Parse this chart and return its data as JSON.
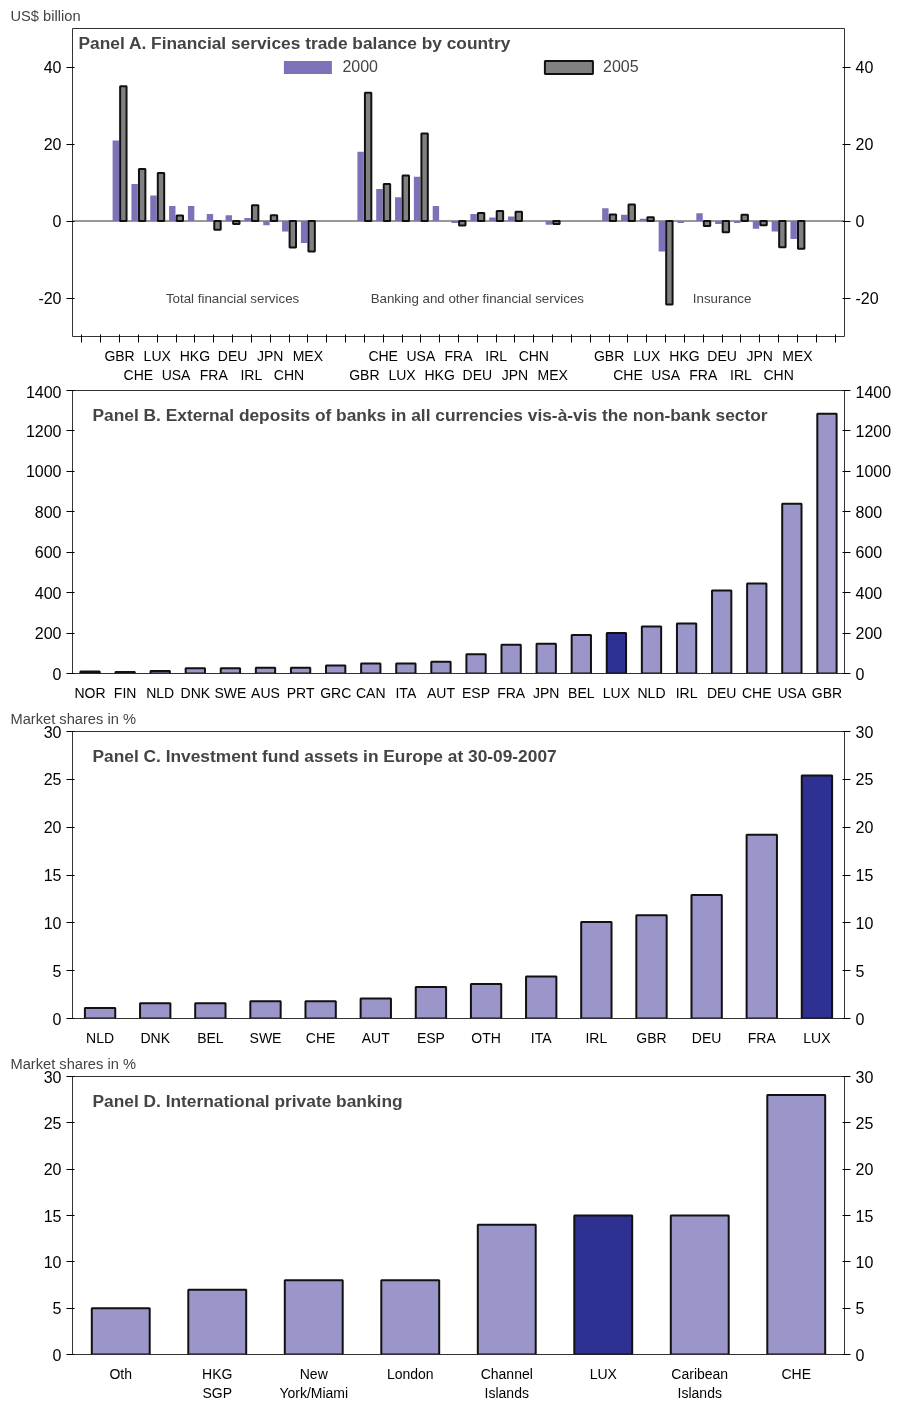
{
  "chart_data": [
    {
      "type": "bar",
      "title": "Panel A. Financial services trade balance by country",
      "ylabel": "US$ billion",
      "categories": [
        null,
        null,
        "GBR",
        "CHE",
        "LUX",
        "USA",
        "HKG",
        "FRA",
        "DEU",
        "IRL",
        "JPN",
        "CHN",
        "MEX",
        null,
        null,
        "GBR",
        "CHE",
        "LUX",
        "USA",
        "HKG",
        "FRA",
        "DEU",
        "IRL",
        "JPN",
        "CHN",
        "MEX",
        null,
        null,
        "GBR",
        "CHE",
        "LUX",
        "USA",
        "HKG",
        "FRA",
        "DEU",
        "IRL",
        "JPN",
        "CHN",
        "MEX",
        null,
        null
      ],
      "series": [
        {
          "name": "2000",
          "color": "#7b72b8",
          "values": [
            null,
            null,
            20.9,
            9.6,
            6.6,
            3.9,
            3.9,
            1.8,
            1.5,
            0.8,
            -1.1,
            -2.7,
            -5.7,
            null,
            null,
            18.0,
            8.3,
            6.2,
            11.5,
            3.9,
            -0.5,
            1.8,
            0.9,
            1.2,
            null,
            -1.0,
            null,
            null,
            3.3,
            1.6,
            0.6,
            -7.9,
            -0.5,
            2.0,
            -0.8,
            -0.5,
            -2.0,
            -2.7,
            -4.7,
            null,
            null
          ]
        },
        {
          "name": "2005",
          "color": "#808080",
          "values": [
            null,
            null,
            35.0,
            13.5,
            12.5,
            1.4,
            null,
            -2.3,
            -0.8,
            4.1,
            1.5,
            -6.9,
            -7.9,
            null,
            null,
            33.3,
            9.6,
            11.8,
            22.7,
            null,
            -1.2,
            2.1,
            2.6,
            2.4,
            null,
            -0.8,
            null,
            null,
            1.7,
            4.3,
            1.0,
            -21.7,
            null,
            -1.3,
            -2.9,
            1.6,
            -1.1,
            -6.8,
            -7.2,
            null,
            null
          ]
        }
      ],
      "annotations": [
        "Total financial services",
        "Banking and other financial services",
        "Insurance"
      ],
      "ylim": [
        -30,
        50
      ],
      "yticks": [
        -20,
        0,
        20,
        40
      ],
      "y2lim": [
        -30,
        50
      ],
      "y2ticks": [
        -20,
        0,
        20,
        40
      ],
      "legend": "top",
      "grid": false,
      "ref_lines": [
        {
          "axis": "y",
          "value": 0,
          "color": "#333333"
        }
      ]
    },
    {
      "type": "bar",
      "title": "Panel B. External deposits of banks in all currencies vis-à-vis the non-bank sector",
      "categories": [
        "NOR",
        "FIN",
        "NLD",
        "DNK",
        "SWE",
        "AUS",
        "PRT",
        "GRC",
        "CAN",
        "ITA",
        "AUT",
        "ESP",
        "FRA",
        "JPN",
        "BEL",
        "LUX",
        "NLD",
        "IRL",
        "DEU",
        "CHE",
        "USA",
        "GBR"
      ],
      "values": [
        10,
        8,
        12,
        26,
        26,
        28,
        28,
        40,
        50,
        50,
        58,
        95,
        142,
        147,
        190,
        200,
        232,
        247,
        410,
        445,
        840,
        1285
      ],
      "colors": [
        "#9b96c9",
        "#9b96c9",
        "#9b96c9",
        "#9b96c9",
        "#9b96c9",
        "#9b96c9",
        "#9b96c9",
        "#9b96c9",
        "#9b96c9",
        "#9b96c9",
        "#9b96c9",
        "#9b96c9",
        "#9b96c9",
        "#9b96c9",
        "#9b96c9",
        "#2e3192",
        "#9b96c9",
        "#9b96c9",
        "#9b96c9",
        "#9b96c9",
        "#9b96c9",
        "#9b96c9"
      ],
      "ylim": [
        0,
        1400
      ],
      "yticks": [
        0,
        200,
        400,
        600,
        800,
        1000,
        1200,
        1400
      ],
      "y2lim": [
        0,
        1400
      ],
      "y2ticks": [
        0,
        200,
        400,
        600,
        800,
        1000,
        1200,
        1400
      ],
      "grid": false
    },
    {
      "type": "bar",
      "title": "Panel C. Investment fund assets in Europe at 30-09-2007",
      "ylabel": "Market shares in %",
      "categories": [
        "NLD",
        "DNK",
        "BEL",
        "SWE",
        "CHE",
        "AUT",
        "ESP",
        "OTH",
        "ITA",
        "IRL",
        "GBR",
        "DEU",
        "FRA",
        "LUX"
      ],
      "values": [
        1.1,
        1.6,
        1.6,
        1.8,
        1.8,
        2.1,
        3.3,
        3.6,
        4.4,
        10.1,
        10.8,
        12.9,
        19.2,
        25.4
      ],
      "colors": [
        "#9b96c9",
        "#9b96c9",
        "#9b96c9",
        "#9b96c9",
        "#9b96c9",
        "#9b96c9",
        "#9b96c9",
        "#9b96c9",
        "#9b96c9",
        "#9b96c9",
        "#9b96c9",
        "#9b96c9",
        "#9b96c9",
        "#2e3192"
      ],
      "ylim": [
        0,
        30
      ],
      "yticks": [
        0,
        5,
        10,
        15,
        20,
        25,
        30
      ],
      "y2lim": [
        0,
        30
      ],
      "y2ticks": [
        0,
        5,
        10,
        15,
        20,
        25,
        30
      ],
      "grid": false
    },
    {
      "type": "bar",
      "title": "Panel D. International private banking",
      "ylabel": "Market shares in %",
      "categories": [
        "Oth",
        "HKG\nSGP",
        "New\nYork/Miami",
        "London",
        "Channel\nIslands",
        "LUX",
        "Caribean\nIslands",
        "CHE"
      ],
      "values": [
        5,
        7,
        8,
        8,
        14,
        15,
        15,
        28
      ],
      "colors": [
        "#9b96c9",
        "#9b96c9",
        "#9b96c9",
        "#9b96c9",
        "#9b96c9",
        "#2e3192",
        "#9b96c9",
        "#9b96c9"
      ],
      "ylim": [
        0,
        30
      ],
      "yticks": [
        0,
        5,
        10,
        15,
        20,
        25,
        30
      ],
      "y2lim": [
        0,
        30
      ],
      "y2ticks": [
        0,
        5,
        10,
        15,
        20,
        25,
        30
      ],
      "grid": false
    }
  ]
}
